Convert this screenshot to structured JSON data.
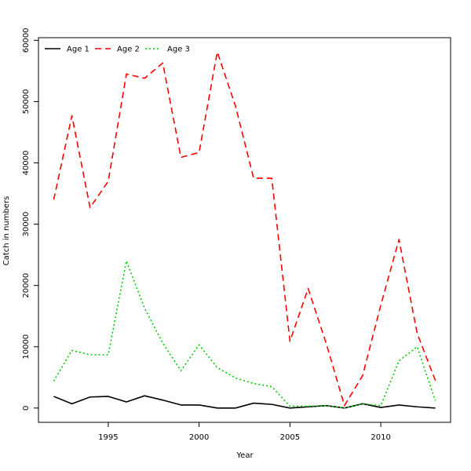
{
  "chart_data": {
    "type": "line",
    "title": "",
    "xlabel": "Year",
    "ylabel": "Catch in numbers",
    "x": [
      1992,
      1993,
      1994,
      1995,
      1996,
      1997,
      1998,
      1999,
      2000,
      2001,
      2002,
      2003,
      2004,
      2005,
      2006,
      2007,
      2008,
      2009,
      2010,
      2011,
      2012,
      2013
    ],
    "series": [
      {
        "name": "Age 1",
        "color": "#000000",
        "dash": "solid",
        "values": [
          1900,
          700,
          1800,
          1900,
          1000,
          2000,
          1300,
          500,
          500,
          0,
          0,
          800,
          600,
          0,
          200,
          400,
          0,
          700,
          100,
          500,
          200,
          0
        ]
      },
      {
        "name": "Age 2",
        "color": "#ff0000",
        "dash": "dashed",
        "values": [
          34000,
          47700,
          32700,
          37000,
          54500,
          53800,
          56300,
          40900,
          41700,
          58100,
          49300,
          37500,
          37500,
          10900,
          19500,
          10500,
          400,
          5300,
          16800,
          27500,
          12200,
          4500
        ]
      },
      {
        "name": "Age 3",
        "color": "#00cd00",
        "dash": "dotted",
        "values": [
          4400,
          9400,
          8700,
          8700,
          24000,
          16300,
          10600,
          6100,
          10300,
          6600,
          4900,
          4000,
          3500,
          300,
          300,
          400,
          0,
          700,
          400,
          7700,
          10000,
          1200
        ]
      }
    ],
    "xticks": [
      1995,
      2000,
      2005,
      2010
    ],
    "xtick_labels": [
      "1995",
      "2000",
      "2005",
      "2010"
    ],
    "yticks": [
      0,
      10000,
      20000,
      30000,
      40000,
      50000,
      60000
    ],
    "ytick_labels": [
      "0",
      "10000",
      "20000",
      "30000",
      "40000",
      "50000",
      "60000"
    ],
    "xlim": [
      1991.16,
      2013.84
    ],
    "ylim": [
      -2330,
      60430
    ],
    "legend_position": "top-left",
    "grid": false
  }
}
